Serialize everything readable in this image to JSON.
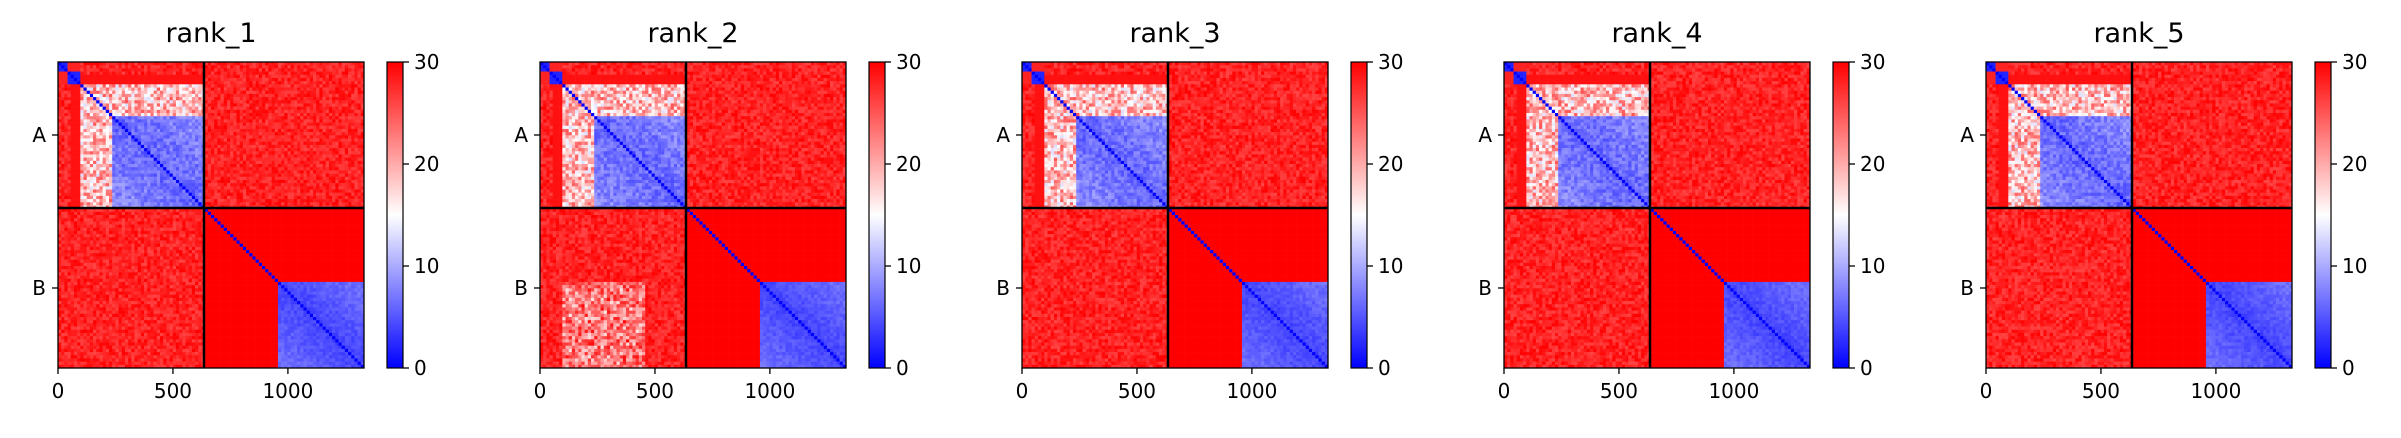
{
  "chart_data": [
    {
      "type": "heatmap",
      "title": "rank_1",
      "x_ticks": [
        0,
        500,
        1000
      ],
      "x_range": [
        0,
        1331
      ],
      "y_tick_labels": [
        "A",
        "B"
      ],
      "chain_break": 635,
      "colorbar": {
        "range": [
          0,
          30
        ],
        "ticks": [
          0,
          10,
          20,
          30
        ],
        "colors": [
          "#0000ff",
          "#ffffff",
          "#ff0000"
        ]
      },
      "B_tail_start": 960
    },
    {
      "type": "heatmap",
      "title": "rank_2",
      "x_ticks": [
        0,
        500,
        1000
      ],
      "x_range": [
        0,
        1331
      ],
      "y_tick_labels": [
        "A",
        "B"
      ],
      "chain_break": 635,
      "colorbar": {
        "range": [
          0,
          30
        ],
        "ticks": [
          0,
          10,
          20,
          30
        ],
        "colors": [
          "#0000ff",
          "#ffffff",
          "#ff0000"
        ]
      },
      "B_tail_start": 960
    },
    {
      "type": "heatmap",
      "title": "rank_3",
      "x_ticks": [
        0,
        500,
        1000
      ],
      "x_range": [
        0,
        1331
      ],
      "y_tick_labels": [
        "A",
        "B"
      ],
      "chain_break": 635,
      "colorbar": {
        "range": [
          0,
          30
        ],
        "ticks": [
          0,
          10,
          20,
          30
        ],
        "colors": [
          "#0000ff",
          "#ffffff",
          "#ff0000"
        ]
      },
      "B_tail_start": 960
    },
    {
      "type": "heatmap",
      "title": "rank_4",
      "x_ticks": [
        0,
        500,
        1000
      ],
      "x_range": [
        0,
        1331
      ],
      "y_tick_labels": [
        "A",
        "B"
      ],
      "chain_break": 635,
      "colorbar": {
        "range": [
          0,
          30
        ],
        "ticks": [
          0,
          10,
          20,
          30
        ],
        "colors": [
          "#0000ff",
          "#ffffff",
          "#ff0000"
        ]
      },
      "B_tail_start": 960
    },
    {
      "type": "heatmap",
      "title": "rank_5",
      "x_ticks": [
        0,
        500,
        1000
      ],
      "x_range": [
        0,
        1331
      ],
      "y_tick_labels": [
        "A",
        "B"
      ],
      "chain_break": 635,
      "colorbar": {
        "range": [
          0,
          30
        ],
        "ticks": [
          0,
          10,
          20,
          30
        ],
        "colors": [
          "#0000ff",
          "#ffffff",
          "#ff0000"
        ]
      },
      "B_tail_start": 960
    }
  ]
}
